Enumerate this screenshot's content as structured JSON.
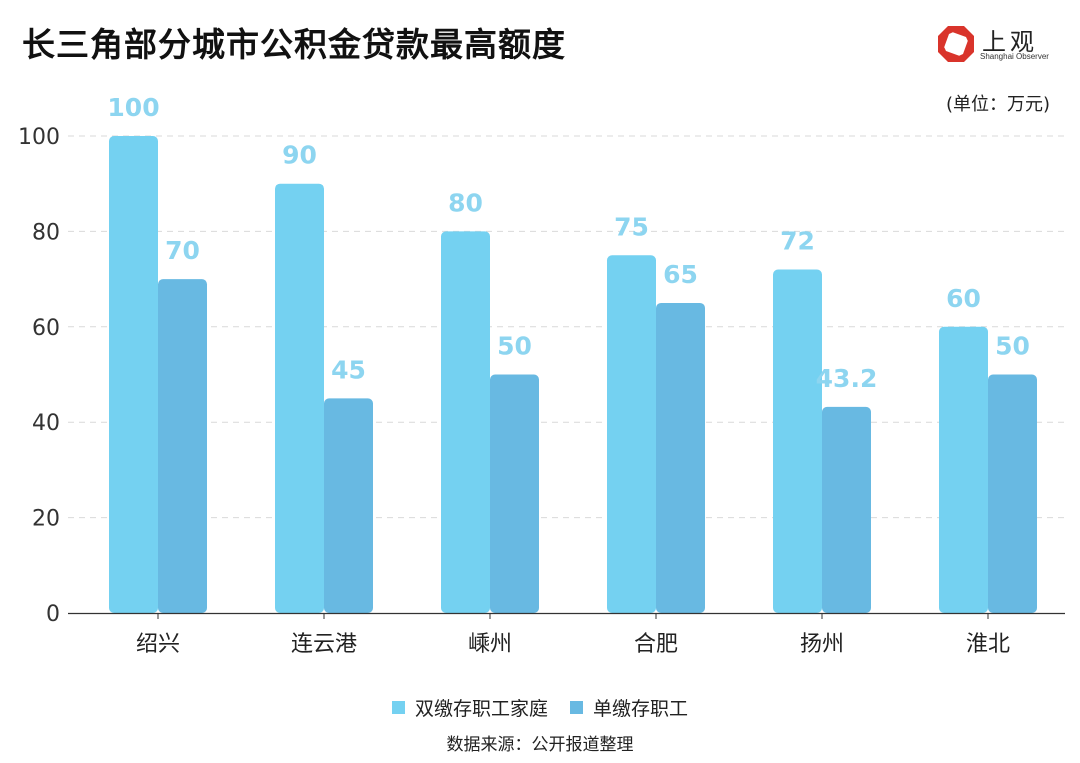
{
  "title": "长三角部分城市公积金贷款最高额度",
  "logo": {
    "cn": "上观",
    "en": "Shanghai Observer"
  },
  "unit": "(单位：万元)",
  "source": "数据来源：公开报道整理",
  "colors": {
    "series1": "#74d1f1",
    "series2": "#68b9e2",
    "label": "#8dd5f0",
    "axis": "#333333",
    "grid": "#d9d9d9",
    "logo": "#d9342b"
  },
  "chart_data": {
    "type": "bar",
    "title": "长三角部分城市公积金贷款最高额度",
    "xlabel": "",
    "ylabel": "",
    "ylim": [
      0,
      100
    ],
    "yticks": [
      0,
      20,
      40,
      60,
      80,
      100
    ],
    "grid": true,
    "legend_position": "bottom",
    "categories": [
      "绍兴",
      "连云港",
      "嵊州",
      "合肥",
      "扬州",
      "淮北"
    ],
    "series": [
      {
        "name": "双缴存职工家庭",
        "values": [
          100,
          90,
          80,
          75,
          72,
          60
        ]
      },
      {
        "name": "单缴存职工",
        "values": [
          70,
          45,
          50,
          65,
          43.2,
          50
        ]
      }
    ]
  }
}
